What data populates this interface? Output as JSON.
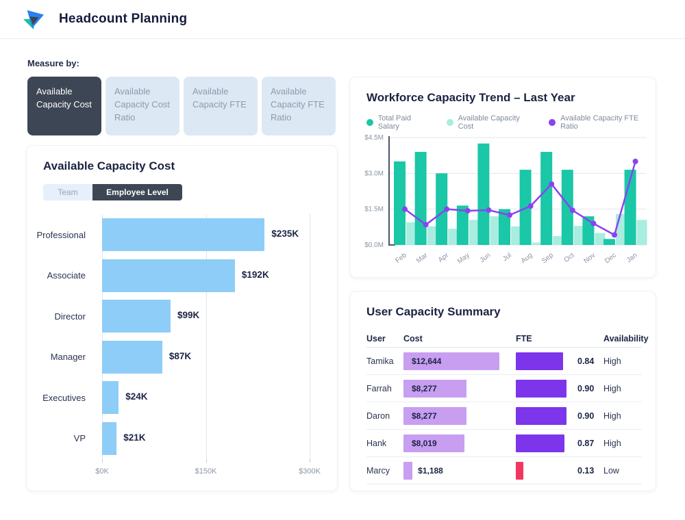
{
  "header": {
    "title": "Headcount Planning"
  },
  "measure_by": {
    "label": "Measure by:",
    "tabs": [
      {
        "label": "Available Capacity Cost",
        "active": true
      },
      {
        "label": "Available Capacity Cost Ratio",
        "active": false
      },
      {
        "label": "Available Capacity FTE",
        "active": false
      },
      {
        "label": "Available Capacity FTE Ratio",
        "active": false
      }
    ]
  },
  "capacity_card": {
    "title": "Available Capacity Cost",
    "view_toggle": [
      {
        "label": "Team",
        "active": false
      },
      {
        "label": "Employee Level",
        "active": true
      }
    ],
    "chart_data": {
      "type": "bar",
      "orientation": "horizontal",
      "categories": [
        "Professional",
        "Associate",
        "Director",
        "Manager",
        "Executives",
        "VP"
      ],
      "values": [
        235000,
        192000,
        99000,
        87000,
        24000,
        21000
      ],
      "value_labels": [
        "$235K",
        "$192K",
        "$99K",
        "$87K",
        "$24K",
        "$21K"
      ],
      "xlim": [
        0,
        300000
      ],
      "x_ticks": [
        0,
        150000,
        300000
      ],
      "x_tick_labels": [
        "$0K",
        "$150K",
        "$300K"
      ],
      "bar_color": "#8ECDF7",
      "grid": true
    }
  },
  "trend_card": {
    "title": "Workforce Capacity Trend – Last Year",
    "chart_data": {
      "type": "combo",
      "categories": [
        "Feb",
        "Mar",
        "Apr",
        "May",
        "Jun",
        "Jul",
        "Aug",
        "Sep",
        "Oct",
        "Nov",
        "Dec",
        "Jan"
      ],
      "y_tick_labels": [
        "$0.0M",
        "$1.5M",
        "$3.0M",
        "$4.5M"
      ],
      "ylim_millions": [
        0,
        4.5
      ],
      "grid": true,
      "legend_position": "top",
      "series": [
        {
          "name": "Total Paid Salary",
          "type": "bar",
          "color": "#1AC7A7",
          "values_millions": [
            3.5,
            3.9,
            3.0,
            1.65,
            4.25,
            1.5,
            3.15,
            3.9,
            3.15,
            1.2,
            0.25,
            3.15
          ]
        },
        {
          "name": "Available Capacity Cost",
          "type": "bar",
          "color": "#A9ECE0",
          "values_millions": [
            0.95,
            0.78,
            0.68,
            1.05,
            1.2,
            0.78,
            0.1,
            0.37,
            0.8,
            0.5,
            1.3,
            1.05
          ]
        },
        {
          "name": "Available Capacity FTE Ratio",
          "type": "line",
          "color": "#8A43F0",
          "values_millions": [
            1.5,
            0.85,
            1.5,
            1.43,
            1.46,
            1.25,
            1.63,
            2.55,
            1.45,
            0.9,
            0.42,
            3.5
          ]
        }
      ]
    }
  },
  "summary_card": {
    "title": "User Capacity Summary",
    "table": {
      "columns": [
        "User",
        "Cost",
        "FTE",
        "Availability"
      ],
      "cost_bar_color": "#C89EF1",
      "fte_bar_color": "#7C35EA",
      "low_color": "#F2365F",
      "cost_scale_max": 12644,
      "rows": [
        {
          "user": "Tamika",
          "cost_label": "$12,644",
          "cost_value": 12644,
          "fte_label": "0.84",
          "fte_value": 0.84,
          "availability": "High",
          "low": false
        },
        {
          "user": "Farrah",
          "cost_label": "$8,277",
          "cost_value": 8277,
          "fte_label": "0.90",
          "fte_value": 0.9,
          "availability": "High",
          "low": false
        },
        {
          "user": "Daron",
          "cost_label": "$8,277",
          "cost_value": 8277,
          "fte_label": "0.90",
          "fte_value": 0.9,
          "availability": "High",
          "low": false
        },
        {
          "user": "Hank",
          "cost_label": "$8,019",
          "cost_value": 8019,
          "fte_label": "0.87",
          "fte_value": 0.87,
          "availability": "High",
          "low": false
        },
        {
          "user": "Marcy",
          "cost_label": "$1,188",
          "cost_value": 1188,
          "fte_label": "0.13",
          "fte_value": 0.13,
          "availability": "Low",
          "low": true
        }
      ]
    }
  },
  "colors": {
    "accent_dark": "#3D4654",
    "tab_inactive_bg": "#DDE8F5",
    "text_dark": "#1B2444",
    "text_gray": "#8A95A6",
    "logo_blue": "#2D7FF0",
    "logo_teal": "#16C0A0"
  }
}
